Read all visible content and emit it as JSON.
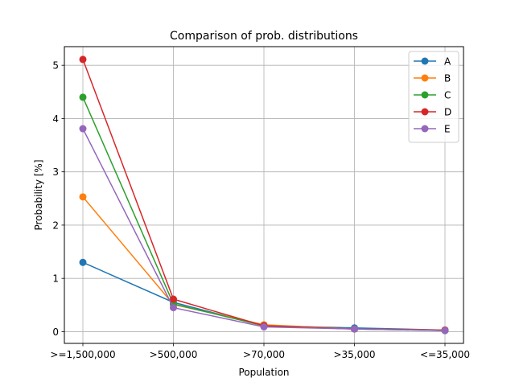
{
  "chart_data": {
    "type": "line",
    "title": "Comparison of prob. distributions",
    "xlabel": "Population",
    "ylabel": "Probability [%]",
    "categories": [
      ">=1,500,000",
      ">500,000",
      ">70,000",
      ">35,000",
      "<=35,000"
    ],
    "ylim": [
      -0.22,
      5.35
    ],
    "yticks": [
      0,
      1,
      2,
      3,
      4,
      5
    ],
    "grid": true,
    "legend_position": "top-right",
    "series": [
      {
        "name": "A",
        "color": "#1f77b4",
        "values": [
          1.3,
          0.55,
          0.11,
          0.07,
          0.03
        ]
      },
      {
        "name": "B",
        "color": "#ff7f0e",
        "values": [
          2.53,
          0.51,
          0.13,
          0.05,
          0.03
        ]
      },
      {
        "name": "C",
        "color": "#2ca02c",
        "values": [
          4.4,
          0.52,
          0.11,
          0.05,
          0.02
        ]
      },
      {
        "name": "D",
        "color": "#d62728",
        "values": [
          5.11,
          0.61,
          0.11,
          0.05,
          0.03
        ]
      },
      {
        "name": "E",
        "color": "#9467bd",
        "values": [
          3.81,
          0.45,
          0.09,
          0.05,
          0.02
        ]
      }
    ]
  }
}
